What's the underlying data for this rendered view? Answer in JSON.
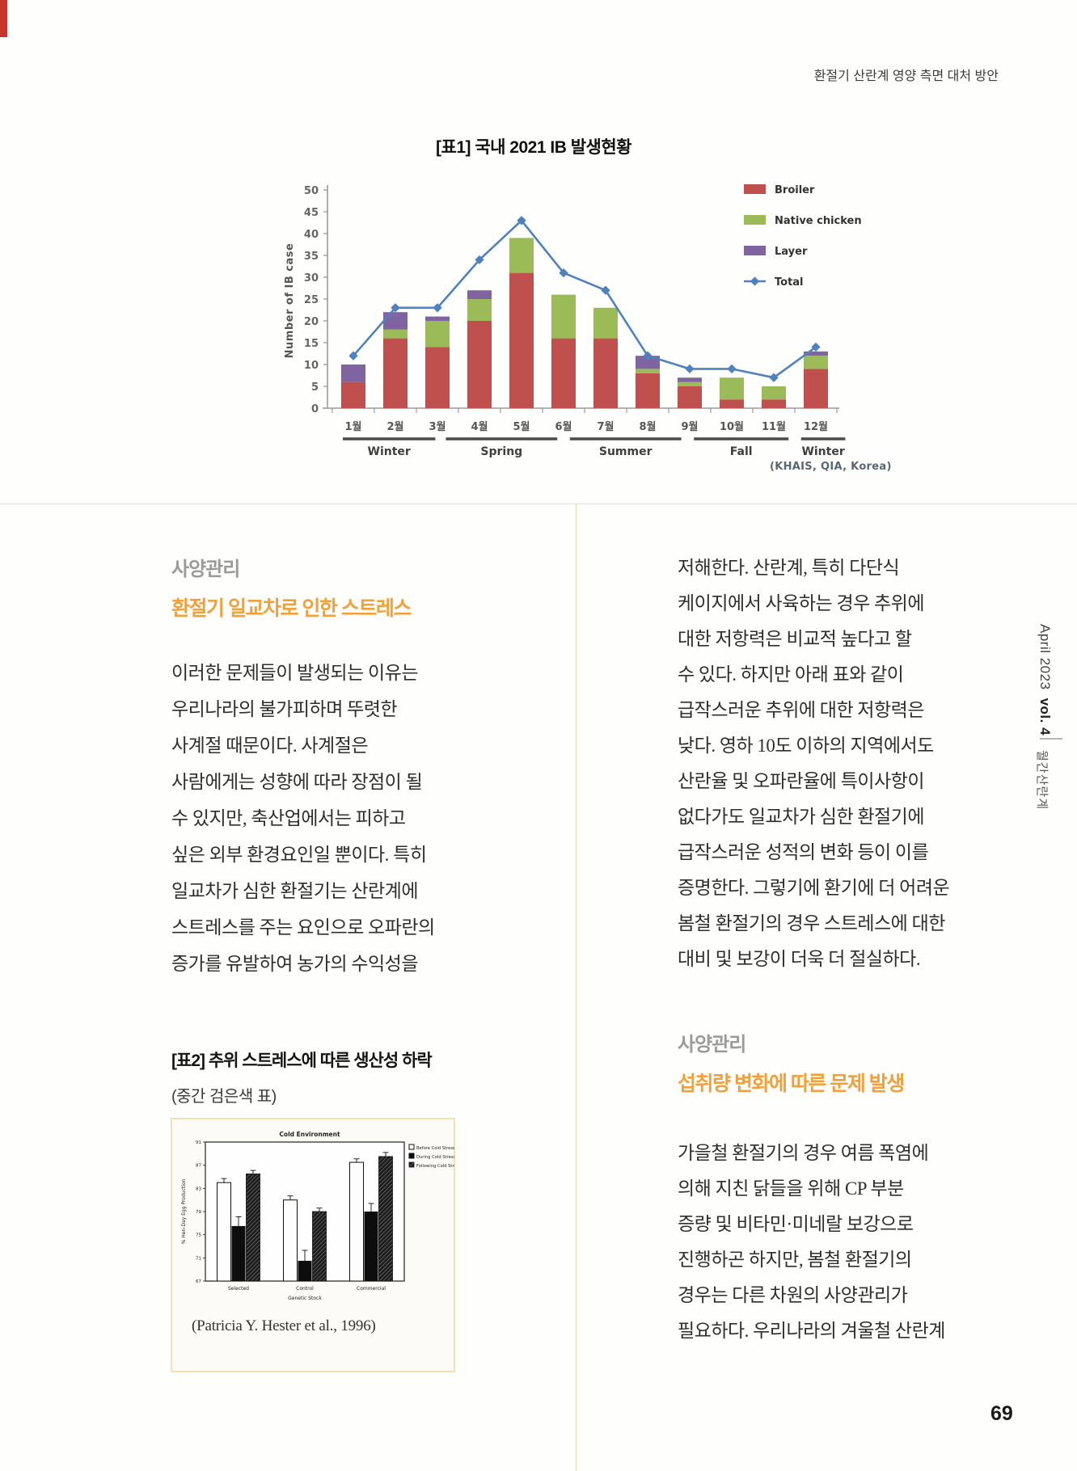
{
  "page": {
    "header": "환절기 산란계 영양 측면 대처 방안",
    "page_number": "69",
    "sidebar": {
      "issue": "April 2023",
      "volume": "vol. 4",
      "magazine": "월간산란계"
    }
  },
  "figure1": {
    "caption": "[표1]  국내 2021 IB 발생현황",
    "source": "(KHAIS, QIA, Korea)"
  },
  "left_column": {
    "section_label": "사양관리",
    "heading": "환절기 일교차로 인한 스트레스",
    "paragraph_lines": [
      "이러한 문제들이 발생되는 이유는",
      "우리나라의 불가피하며 뚜렷한",
      "사계절 때문이다. 사계절은",
      "사람에게는 성향에 따라 장점이 될",
      "수 있지만, 축산업에서는 피하고",
      "싶은 외부 환경요인일 뿐이다. 특히",
      "일교차가 심한 환절기는 산란계에",
      "스트레스를 주는 요인으로 오파란의",
      "증가를 유발하여 농가의 수익성을"
    ],
    "figure2": {
      "caption_title": "[표2] 추위 스트레스에 따른 생산성 하락",
      "caption_sub": "(중간 검은색 표)",
      "citation": "(Patricia Y. Hester et al., 1996)"
    }
  },
  "right_column": {
    "paragraph1_lines": [
      "저해한다. 산란계, 특히 다단식",
      "케이지에서 사육하는 경우 추위에",
      "대한 저항력은 비교적 높다고 할",
      "수 있다. 하지만 아래 표와 같이",
      "급작스러운 추위에 대한 저항력은",
      "낮다. 영하 10도 이하의 지역에서도",
      "산란율 및 오파란율에 특이사항이",
      "없다가도 일교차가 심한 환절기에",
      "급작스러운 성적의 변화 등이 이를",
      "증명한다. 그렇기에 환기에 더 어려운",
      "봄철 환절기의 경우 스트레스에 대한",
      "대비 및 보강이 더욱 더 절실하다."
    ],
    "section_label": "사양관리",
    "heading": "섭취량 변화에 따른 문제 발생",
    "paragraph2_lines": [
      "가을철 환절기의 경우 여름 폭염에",
      "의해 지친 닭들을 위해 CP 부분",
      "증량 및 비타민·미네랄 보강으로",
      "진행하곤 하지만, 봄철 환절기의",
      "경우는 다른 차원의 사양관리가",
      "필요하다. 우리나라의 겨울철 산란계"
    ]
  },
  "chart_data": [
    {
      "type": "bar",
      "subtype": "stacked-bar-with-line",
      "title": "[표1]  국내 2021 IB 발생현황",
      "ylabel": "Number of IB case",
      "ylim": [
        0,
        50
      ],
      "ytick_step": 5,
      "categories": [
        "1월",
        "2월",
        "3월",
        "4월",
        "5월",
        "6월",
        "7월",
        "8월",
        "9월",
        "10월",
        "11월",
        "12월"
      ],
      "series": [
        {
          "name": "Broiler",
          "color": "#c0504d",
          "values": [
            6,
            16,
            14,
            20,
            31,
            16,
            16,
            8,
            5,
            2,
            2,
            9
          ]
        },
        {
          "name": "Native chicken",
          "color": "#9bbb59",
          "values": [
            0,
            2,
            6,
            5,
            8,
            10,
            7,
            1,
            1,
            5,
            3,
            3
          ]
        },
        {
          "name": "Layer",
          "color": "#8064a2",
          "values": [
            4,
            4,
            1,
            2,
            0,
            0,
            0,
            3,
            1,
            0,
            0,
            1
          ]
        }
      ],
      "line": {
        "name": "Total",
        "color": "#4f81bd",
        "values": [
          12,
          23,
          23,
          34,
          43,
          31,
          27,
          12,
          9,
          9,
          7,
          14
        ]
      },
      "seasons": [
        {
          "label": "Winter",
          "span": [
            -0.25,
            1.95
          ]
        },
        {
          "label": "Spring",
          "span": [
            2.2,
            4.85
          ]
        },
        {
          "label": "Summer",
          "span": [
            5.15,
            7.8
          ]
        },
        {
          "label": "Fall",
          "span": [
            8.1,
            10.35
          ]
        },
        {
          "label": "Winter",
          "span": [
            10.65,
            11.7
          ]
        }
      ],
      "legend_position": "right",
      "source": "(KHAIS, QIA, Korea)"
    },
    {
      "type": "bar",
      "subtype": "grouped-bar",
      "title": "Cold Environment",
      "ylabel": "% Hen-Day Egg Production",
      "xlabel": "Genetic Stock",
      "ylim": [
        67,
        91
      ],
      "ytick_step": 4,
      "categories": [
        "Selected",
        "Control",
        "Commercial"
      ],
      "series": [
        {
          "name": "Before Cold Stress",
          "style": "open",
          "values": [
            84,
            81,
            87.5
          ],
          "errors": [
            0.7,
            0.7,
            0.6
          ]
        },
        {
          "name": "During Cold Stress",
          "style": "solid",
          "values": [
            76.5,
            70.5,
            79
          ],
          "errors": [
            1.6,
            1.8,
            1.4
          ]
        },
        {
          "name": "Following Cold Stress",
          "style": "hatch",
          "values": [
            85.5,
            79,
            88.5
          ],
          "errors": [
            0.6,
            0.6,
            0.7
          ]
        }
      ],
      "legend_position": "top-right",
      "citation": "(Patricia Y. Hester et al., 1996)"
    }
  ]
}
